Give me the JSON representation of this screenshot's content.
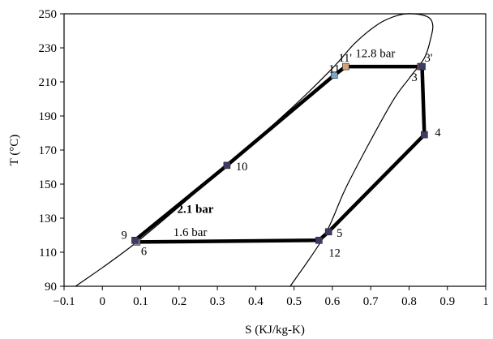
{
  "chart_data": {
    "type": "line",
    "title": "",
    "xlabel": "S (KJ/kg-K)",
    "ylabel": "T (°C)",
    "xlim": [
      -0.1,
      1.0
    ],
    "ylim": [
      90,
      250
    ],
    "x_ticks": [
      -0.1,
      0,
      0.1,
      0.2,
      0.3,
      0.4,
      0.5,
      0.6,
      0.7,
      0.8,
      0.9,
      1.0
    ],
    "x_tick_labels": [
      "−0.1",
      "0",
      "0.1",
      "0.2",
      "0.3",
      "0.4",
      "0.5",
      "0.6",
      "0.7",
      "0.8",
      "0.9",
      "1"
    ],
    "y_ticks": [
      90,
      110,
      130,
      150,
      170,
      190,
      210,
      230,
      250
    ],
    "y_tick_labels": [
      "90",
      "110",
      "130",
      "150",
      "170",
      "190",
      "210",
      "230",
      "250"
    ],
    "grid": false,
    "legend": "none",
    "saturation_dome": [
      {
        "x": -0.07,
        "y": 90
      },
      {
        "x": 0.09,
        "y": 116
      },
      {
        "x": 0.33,
        "y": 162
      },
      {
        "x": 0.5,
        "y": 196
      },
      {
        "x": 0.6,
        "y": 218
      },
      {
        "x": 0.66,
        "y": 233
      },
      {
        "x": 0.72,
        "y": 244
      },
      {
        "x": 0.77,
        "y": 249
      },
      {
        "x": 0.81,
        "y": 250
      },
      {
        "x": 0.85,
        "y": 248
      },
      {
        "x": 0.862,
        "y": 243
      },
      {
        "x": 0.856,
        "y": 235
      },
      {
        "x": 0.84,
        "y": 224
      },
      {
        "x": 0.8,
        "y": 212
      },
      {
        "x": 0.75,
        "y": 196
      },
      {
        "x": 0.64,
        "y": 150
      },
      {
        "x": 0.58,
        "y": 120
      },
      {
        "x": 0.49,
        "y": 90
      }
    ],
    "cycle": [
      {
        "label": "6",
        "x": 0.09,
        "y": 116,
        "color": "#8c8c8c"
      },
      {
        "label": "9",
        "x": 0.085,
        "y": 117,
        "color": "#3c3c66"
      },
      {
        "label": "10",
        "x": 0.325,
        "y": 161,
        "color": "#3c3c66"
      },
      {
        "label": "11",
        "x": 0.605,
        "y": 214,
        "color": "#7aa7c7"
      },
      {
        "label": "11'",
        "x": 0.635,
        "y": 219,
        "color": "#d2a07a"
      },
      {
        "label": "3'",
        "x": 0.83,
        "y": 219,
        "color": "#a06070"
      },
      {
        "label": "3",
        "x": 0.834,
        "y": 219,
        "color": "#3c3c66"
      },
      {
        "label": "4",
        "x": 0.84,
        "y": 179,
        "color": "#3c3c66"
      },
      {
        "label": "5",
        "x": 0.59,
        "y": 122,
        "color": "#3c3c66"
      },
      {
        "label": "12",
        "x": 0.565,
        "y": 117,
        "color": "#3c3c66"
      }
    ],
    "annotations": [
      {
        "text": "12.8 bar",
        "x": 0.66,
        "y": 224.5,
        "bold": false
      },
      {
        "text": "2.1 bar",
        "x": 0.195,
        "y": 133,
        "bold": true
      },
      {
        "text": "1.6 bar",
        "x": 0.185,
        "y": 119.5,
        "bold": false
      }
    ]
  }
}
